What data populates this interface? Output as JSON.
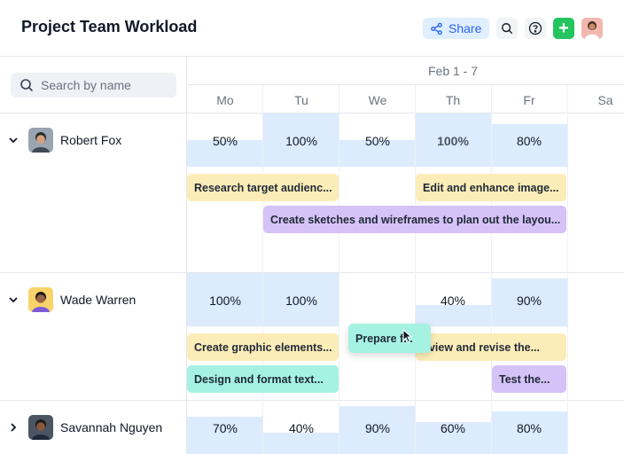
{
  "header": {
    "title": "Project Team Workload",
    "share_label": "Share",
    "add_label": "+"
  },
  "search": {
    "placeholder": "Search by name"
  },
  "calendar": {
    "week_label": "Feb 1 - 7",
    "days": [
      "Mo",
      "Tu",
      "We",
      "Th",
      "Fr",
      "Sa"
    ]
  },
  "people": [
    {
      "name": "Robert Fox",
      "expanded": true,
      "workload": [
        "50%",
        "100%",
        "50%",
        "100%",
        "80%"
      ],
      "workload_fraction": [
        0.5,
        1.0,
        0.5,
        1.0,
        0.8
      ],
      "tasks": [
        {
          "label": "Research target audienc...",
          "color": "yellow"
        },
        {
          "label": "Edit and enhance image...",
          "color": "yellow"
        },
        {
          "label": "Create sketches and wireframes to plan out the layou...",
          "color": "purple"
        }
      ]
    },
    {
      "name": "Wade Warren",
      "expanded": true,
      "workload": [
        "100%",
        "100%",
        "",
        "40%",
        "90%"
      ],
      "workload_fraction": [
        1.0,
        1.0,
        0,
        0.4,
        0.9
      ],
      "tasks": [
        {
          "label": "Create graphic elements...",
          "color": "yellow"
        },
        {
          "label": "Prepare f...",
          "color": "teal"
        },
        {
          "label": "eview and revise the...",
          "color": "yellow"
        },
        {
          "label": "Design and format text...",
          "color": "teal"
        },
        {
          "label": "Test the...",
          "color": "purple"
        }
      ]
    },
    {
      "name": "Savannah Nguyen",
      "expanded": false,
      "workload": [
        "70%",
        "40%",
        "90%",
        "60%",
        "80%"
      ],
      "workload_fraction": [
        0.7,
        0.4,
        0.9,
        0.6,
        0.8
      ]
    }
  ],
  "colors": {
    "accent": "#2563eb",
    "add_button": "#22c55e",
    "load_fill": "#dcebfd",
    "task_yellow": "#fcedb8",
    "task_purple": "#d5c2f7",
    "task_teal": "#a6f2e2"
  },
  "icons": [
    "share-icon",
    "search-icon",
    "help-icon",
    "plus-icon",
    "chevron-down-icon",
    "chevron-right-icon"
  ]
}
